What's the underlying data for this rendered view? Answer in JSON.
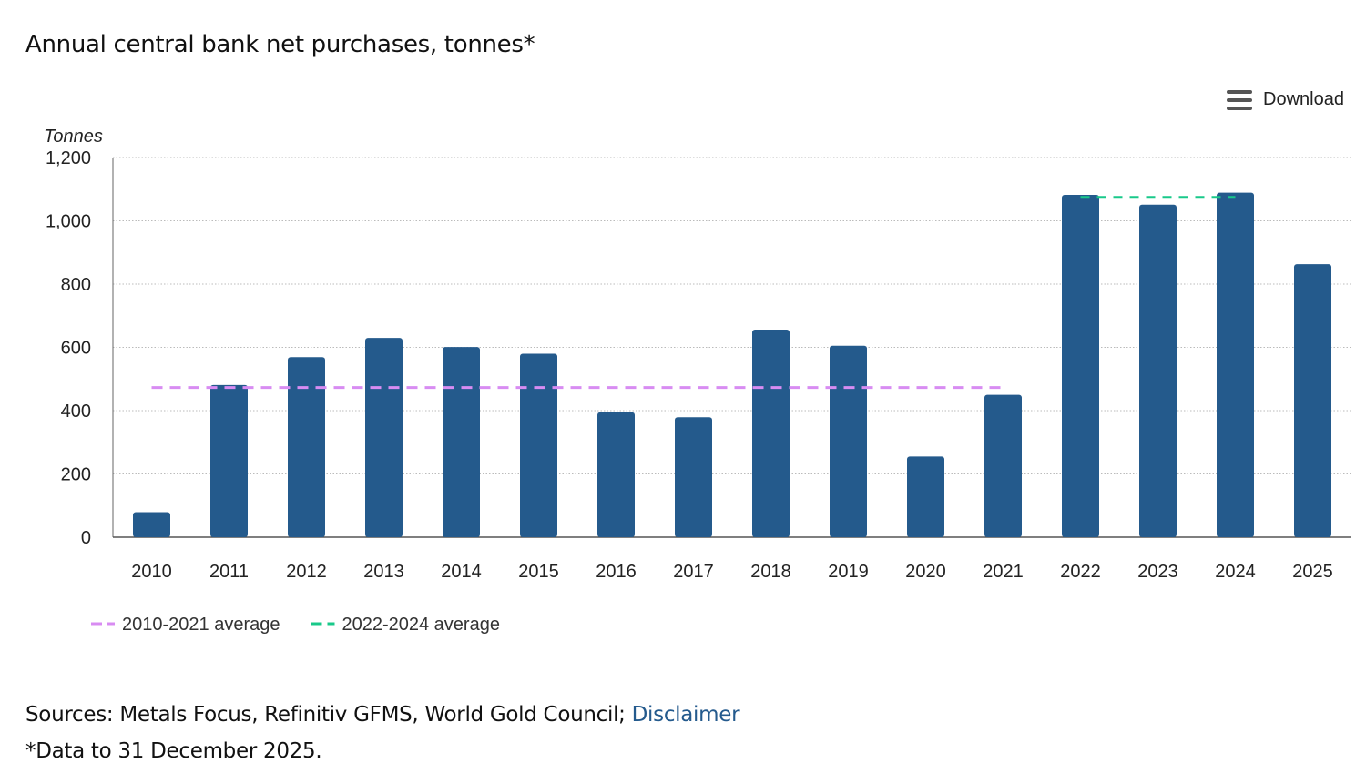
{
  "header": {
    "title": "Annual central bank net purchases, tonnes*",
    "download_label": "Download",
    "download_icon": "hamburger-menu-icon"
  },
  "footer": {
    "sources_prefix": "Sources: Metals Focus, Refinitiv GFMS, World Gold Council; ",
    "disclaimer_link": "Disclaimer",
    "footnote": "*Data to 31 December 2025."
  },
  "colors": {
    "bar": "#245a8c",
    "avg_2010_2021": "#d88cf2",
    "avg_2022_2024": "#19c98a",
    "grid": "#bbbbbb",
    "link": "#245a8d"
  },
  "chart_data": {
    "type": "bar",
    "title": "Annual central bank net purchases, tonnes*",
    "ylabel": "Tonnes",
    "ylim": [
      0,
      1200
    ],
    "yticks": [
      0,
      200,
      400,
      600,
      800,
      1000,
      1200
    ],
    "ytick_labels": [
      "0",
      "200",
      "400",
      "600",
      "800",
      "1,000",
      "1,200"
    ],
    "grid": true,
    "categories": [
      "2010",
      "2011",
      "2012",
      "2013",
      "2014",
      "2015",
      "2016",
      "2017",
      "2018",
      "2019",
      "2020",
      "2021",
      "2022",
      "2023",
      "2024",
      "2025"
    ],
    "values": [
      79,
      481,
      569,
      630,
      601,
      580,
      395,
      379,
      656,
      605,
      255,
      450,
      1082,
      1051,
      1089,
      863
    ],
    "lines": [
      {
        "name": "2010-2021 average",
        "value": 473,
        "from": "2010",
        "to": "2021",
        "style": "dashed"
      },
      {
        "name": "2022-2024 average",
        "value": 1074,
        "from": "2022",
        "to": "2024",
        "style": "dashed"
      }
    ],
    "legend_position": "bottom-left"
  }
}
